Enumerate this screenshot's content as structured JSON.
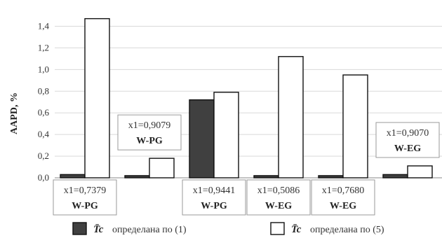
{
  "chart_data": {
    "type": "bar",
    "ylabel": "AAPD, %",
    "ylim": [
      0,
      1.5
    ],
    "yticks": [
      "0,0",
      "0,2",
      "0,4",
      "0,6",
      "0,8",
      "1,0",
      "1,2",
      "1,4"
    ],
    "grid": true,
    "groups": [
      {
        "x1": "x1=0,7379",
        "system": "W-PG",
        "values": [
          0.03,
          1.47
        ]
      },
      {
        "x1": "x1=0,9079",
        "system": "W-PG",
        "values": [
          0.02,
          0.18
        ]
      },
      {
        "x1": "x1=0,9441",
        "system": "W-PG",
        "values": [
          0.72,
          0.79
        ]
      },
      {
        "x1": "x1=0,5086",
        "system": "W-EG",
        "values": [
          0.02,
          1.12
        ]
      },
      {
        "x1": "x1=0,7680",
        "system": "W-EG",
        "values": [
          0.02,
          0.95
        ]
      },
      {
        "x1": "x1=0,9070",
        "system": "W-EG",
        "values": [
          0.03,
          0.11
        ]
      }
    ],
    "series": [
      {
        "symbol": "T̄c",
        "name": "определана по (1)",
        "color": "#404040"
      },
      {
        "symbol": "T̄c",
        "name": "определана по (5)",
        "color": "#ffffff"
      }
    ],
    "legend_position": "bottom"
  }
}
